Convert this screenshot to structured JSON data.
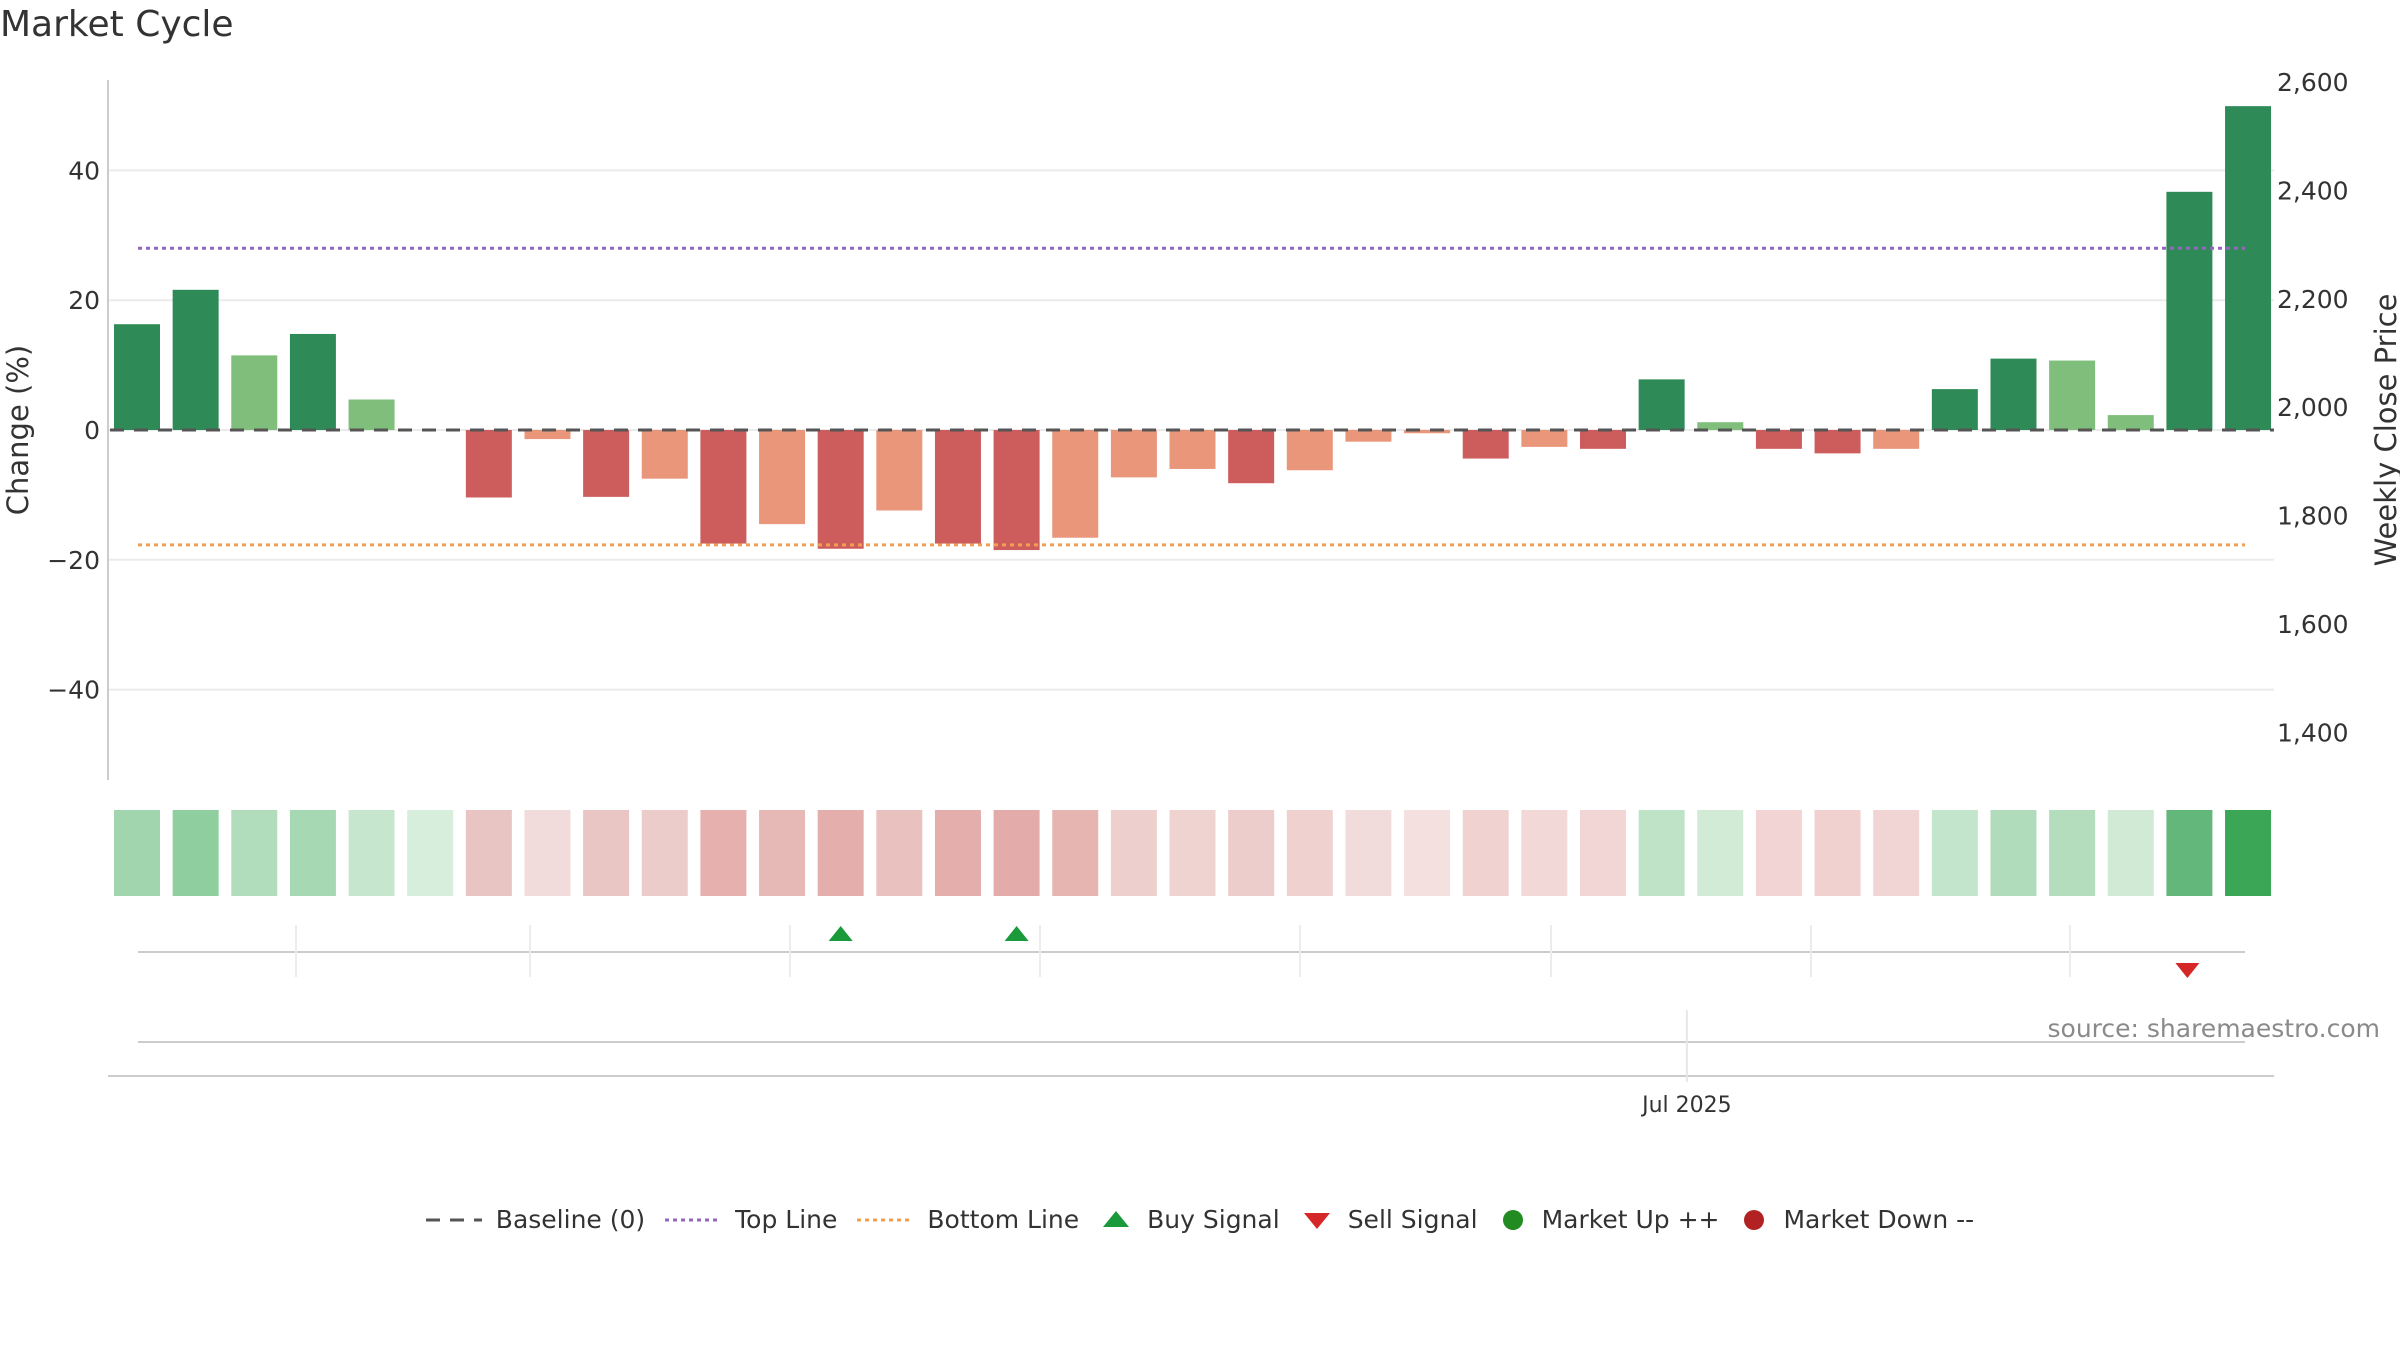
{
  "title": "Market Cycle",
  "source": "source: sharemaestro.com",
  "colors": {
    "up_strong": "#2e8b57",
    "up_weak": "#7fbf7b",
    "down_strong": "#cd5c5c",
    "down_weak": "#e9967a",
    "top_line": "#9467bd",
    "bottom_line": "#f0a050",
    "baseline": "#555555",
    "buy": "#1a9a3a",
    "sell": "#d62728",
    "market_up": "#228b22",
    "market_down": "#b22222"
  },
  "chart_data": {
    "type": "bar",
    "left_axis": {
      "label": "Change (%)",
      "ticks": [
        40,
        20,
        0,
        -20,
        -40
      ],
      "tick_labels": [
        "40",
        "20",
        "0",
        "−20",
        "−40"
      ],
      "range": [
        -54,
        54
      ]
    },
    "right_axis": {
      "label": "Weekly Close Price",
      "ticks": [
        2600,
        2400,
        2200,
        2000,
        1800,
        1600,
        1400
      ],
      "tick_labels": [
        "2,600",
        "2,400",
        "2,200",
        "2,000",
        "1,800",
        "1,600",
        "1,400"
      ]
    },
    "x_tick_labels": [
      {
        "index": 24,
        "label": "Jul 2025"
      }
    ],
    "top_line": 28,
    "bottom_line": -17.7,
    "values": [
      16.3,
      21.6,
      11.5,
      14.8,
      4.7,
      0,
      -10.4,
      -1.4,
      -10.3,
      -7.5,
      -17.5,
      -14.5,
      -18.3,
      -12.4,
      -17.5,
      -18.5,
      -16.6,
      -7.3,
      -6.0,
      -8.2,
      -6.2,
      -1.8,
      -0.5,
      -4.4,
      -2.6,
      -2.9,
      7.8,
      1.2,
      -2.9,
      -3.6,
      -2.9,
      6.3,
      11.0,
      10.7,
      2.3,
      36.7,
      49.9
    ],
    "strength": [
      "strong",
      "strong",
      "weak",
      "strong",
      "weak",
      "weak",
      "strong",
      "weak",
      "strong",
      "weak",
      "strong",
      "weak",
      "strong",
      "weak",
      "strong",
      "strong",
      "weak",
      "weak",
      "weak",
      "strong",
      "weak",
      "weak",
      "weak",
      "strong",
      "weak",
      "strong",
      "strong",
      "weak",
      "strong",
      "strong",
      "weak",
      "strong",
      "strong",
      "weak",
      "weak",
      "strong",
      "strong"
    ],
    "heat_colors": [
      "#a1d5ad",
      "#8fce9e",
      "#b2ddbc",
      "#a6d8b3",
      "#c6e7ce",
      "#d6eedb",
      "#e8c4c2",
      "#f1dcdb",
      "#e9c5c4",
      "#ecccca",
      "#e5b0ae",
      "#e6b9b7",
      "#e3aeac",
      "#e9c1bf",
      "#e4aeac",
      "#e3acaa",
      "#e6b5b2",
      "#edcfcd",
      "#efd3d1",
      "#edcdcb",
      "#efd1cf",
      "#f2dcdb",
      "#f4e0df",
      "#f0d3d1",
      "#f2d9d8",
      "#f1d6d5",
      "#bfe3c7",
      "#d1ebd6",
      "#f1d4d3",
      "#f0d1d0",
      "#f1d5d4",
      "#c3e5cb",
      "#b1dcbb",
      "#b3ddbd",
      "#d0ead5",
      "#64b77a",
      "#3aa656"
    ],
    "buy_signals": [
      12,
      15
    ],
    "sell_signals": [
      35
    ],
    "legend": [
      "Baseline (0)",
      "Top Line",
      "Bottom Line",
      "Buy Signal",
      "Sell Signal",
      "Market Up ++",
      "Market Down --"
    ]
  }
}
